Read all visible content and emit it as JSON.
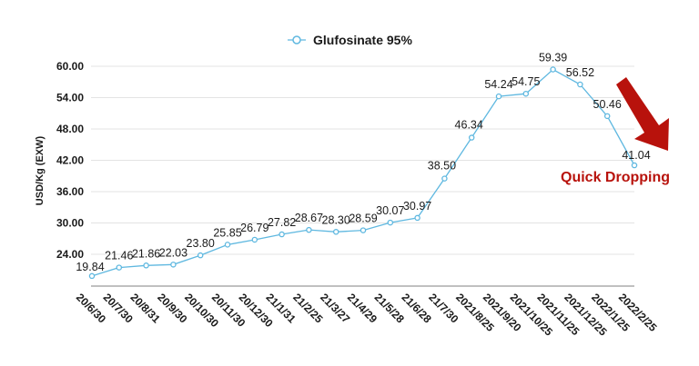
{
  "chart_data": {
    "type": "line",
    "title": "",
    "legend": {
      "entries": [
        "Glufosinate 95%"
      ],
      "position": "top"
    },
    "xlabel": "",
    "ylabel": "USD/Kg    (EXW)",
    "ylim": [
      17.9,
      60.0
    ],
    "yticks": [
      24.0,
      30.0,
      36.0,
      42.0,
      48.0,
      54.0,
      60.0
    ],
    "ytick_labels": [
      "24.00",
      "30.00",
      "36.00",
      "42.00",
      "48.00",
      "54.00",
      "60.00"
    ],
    "grid": true,
    "categories": [
      "20/6/30",
      "20/7/30",
      "20/8/31",
      "20/9/30",
      "20/10/30",
      "20/11/30",
      "20/12/30",
      "21/1/31",
      "21/2/25",
      "21/3/27",
      "21/4/29",
      "21/5/28",
      "21/6/28",
      "21/7/30",
      "2021/8/25",
      "2021/9/20",
      "2021/10/25",
      "2021/11/25",
      "2021/12/25",
      "2022/1/25",
      "2022/2/25"
    ],
    "series": [
      {
        "name": "Glufosinate 95%",
        "color": "#5fb8e0",
        "values": [
          19.84,
          21.46,
          21.86,
          22.03,
          23.8,
          25.85,
          26.79,
          27.82,
          28.67,
          28.3,
          28.59,
          30.07,
          30.97,
          38.5,
          46.34,
          54.24,
          54.75,
          59.39,
          56.52,
          50.46,
          41.04
        ],
        "labels": [
          "19.84",
          "21.46",
          "21.86",
          "22.03",
          "23.80",
          "25.85",
          "26.79",
          "27.82",
          "28.67",
          "28.30",
          "28.59",
          "30.07",
          "30.97",
          "38.50",
          "46.34",
          "54.24",
          "54.75",
          "59.39",
          "56.52",
          "50.46",
          "41.04"
        ]
      }
    ],
    "annotations": [
      {
        "text": "Quick Dropping",
        "color": "#b8120c",
        "type": "text"
      },
      {
        "type": "arrow",
        "direction": "down-right",
        "color": "#b8120c"
      }
    ]
  }
}
